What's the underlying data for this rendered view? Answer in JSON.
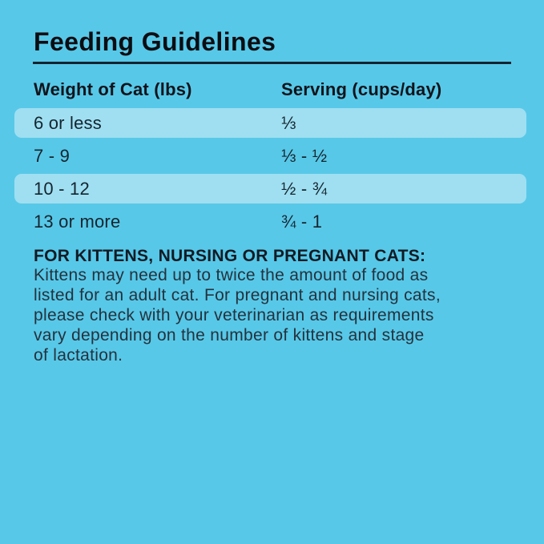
{
  "theme": {
    "background_color": "#58c8e8",
    "row_highlight_color": "#9fdff1",
    "heading_text_color": "#0b0d12",
    "body_text_color": "#24323d",
    "rule_color": "#152430"
  },
  "header": {
    "title": "Feeding Guidelines"
  },
  "table": {
    "columns": [
      {
        "label": "Weight of Cat (lbs)"
      },
      {
        "label": "Serving (cups/day)"
      }
    ],
    "rows": [
      {
        "weight": "6 or less",
        "serving": "⅓",
        "highlighted": true
      },
      {
        "weight": "7 - 9",
        "serving": "⅓ - ½",
        "highlighted": false
      },
      {
        "weight": "10 - 12",
        "serving": "½ - ¾",
        "highlighted": true
      },
      {
        "weight": "13 or more",
        "serving": "¾ - 1",
        "highlighted": false
      }
    ]
  },
  "note": {
    "heading": "FOR KITTENS, NURSING OR PREGNANT CATS:",
    "lines": [
      "Kittens may need up to twice the amount of food as",
      "listed for an adult cat. For pregnant and nursing cats,",
      "please check with your veterinarian as requirements",
      "vary depending on the number of kittens and stage",
      "of lactation."
    ]
  }
}
